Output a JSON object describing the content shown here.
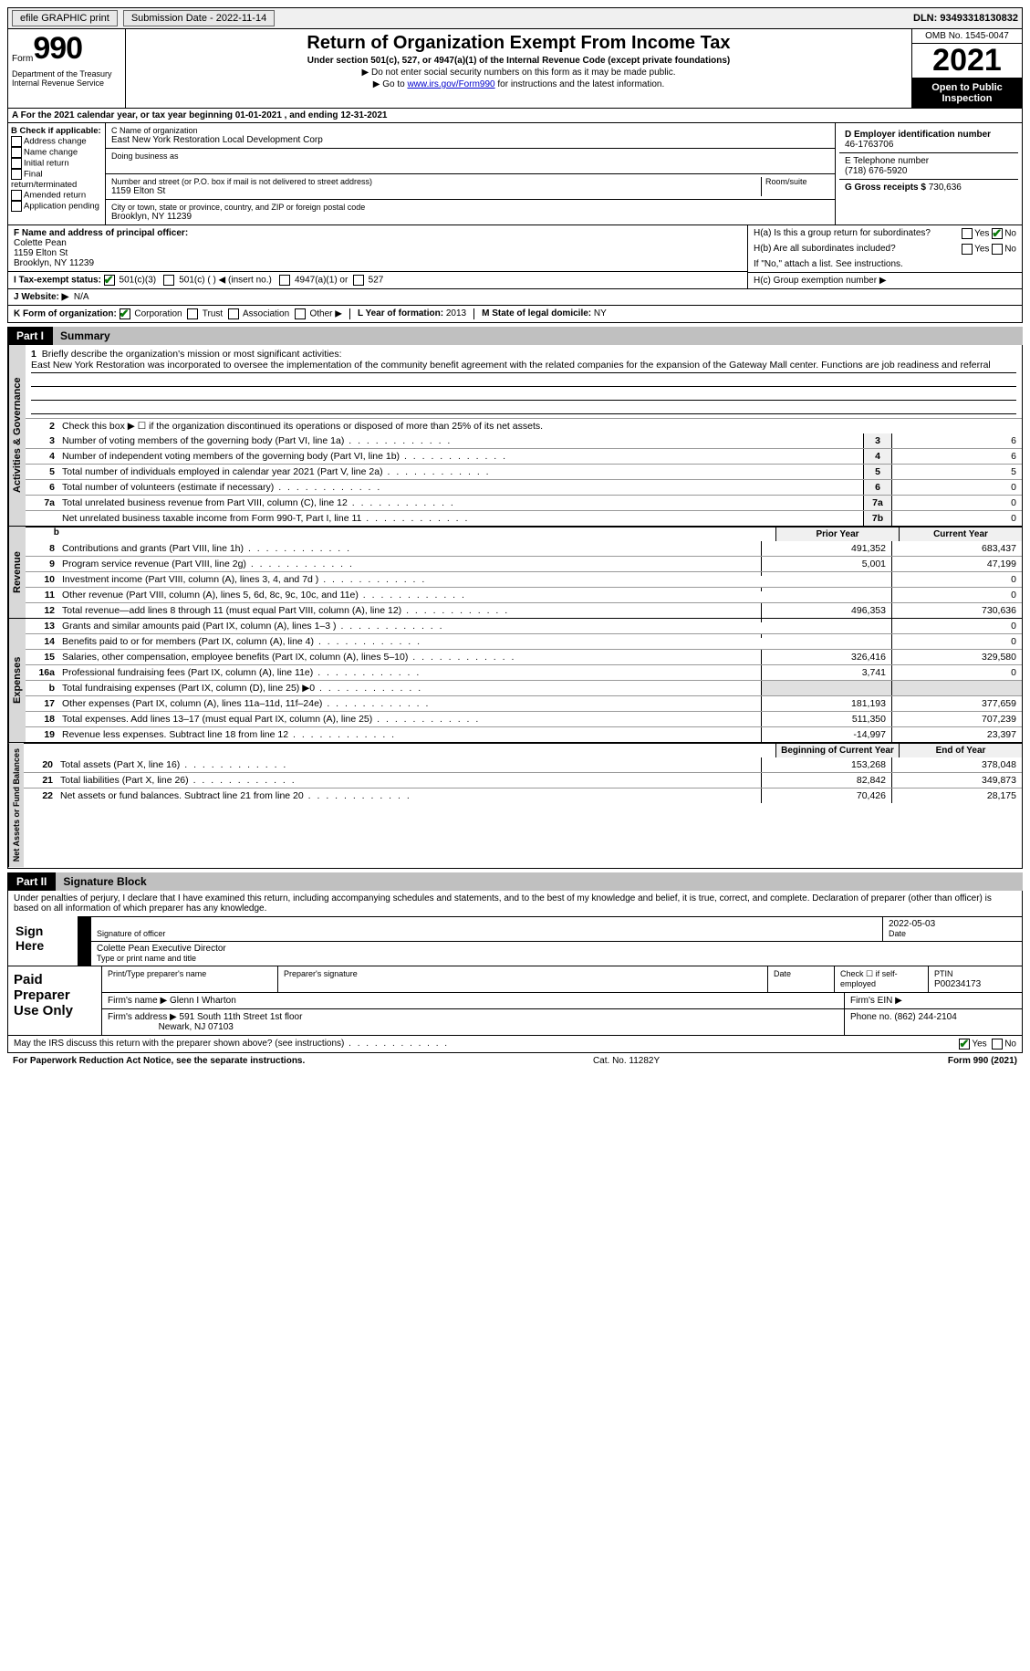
{
  "topbar": {
    "efile": "efile GRAPHIC print",
    "submission": "Submission Date - 2022-11-14",
    "dln": "DLN: 93493318130832"
  },
  "header": {
    "form_word": "Form",
    "form_num": "990",
    "dept": "Department of the Treasury\nInternal Revenue Service",
    "title": "Return of Organization Exempt From Income Tax",
    "sub": "Under section 501(c), 527, or 4947(a)(1) of the Internal Revenue Code (except private foundations)",
    "line1": "▶ Do not enter social security numbers on this form as it may be made public.",
    "line2_pre": "▶ Go to ",
    "line2_link": "www.irs.gov/Form990",
    "line2_post": " for instructions and the latest information.",
    "omb": "OMB No. 1545-0047",
    "year": "2021",
    "open_pub": "Open to Public Inspection"
  },
  "A": "A For the 2021 calendar year, or tax year beginning 01-01-2021   , and ending 12-31-2021",
  "B": {
    "title": "B Check if applicable:",
    "items": [
      "Address change",
      "Name change",
      "Initial return",
      "Final return/terminated",
      "Amended return",
      "Application pending"
    ]
  },
  "C": {
    "name_lbl": "C Name of organization",
    "name": "East New York Restoration Local Development Corp",
    "dba_lbl": "Doing business as",
    "addr_lbl": "Number and street (or P.O. box if mail is not delivered to street address)",
    "room_lbl": "Room/suite",
    "addr": "1159 Elton St",
    "city_lbl": "City or town, state or province, country, and ZIP or foreign postal code",
    "city": "Brooklyn, NY  11239"
  },
  "D": {
    "lbl": "D Employer identification number",
    "val": "46-1763706"
  },
  "E": {
    "lbl": "E Telephone number",
    "val": "(718) 676-5920"
  },
  "G": {
    "lbl": "G Gross receipts $",
    "val": "730,636"
  },
  "F": {
    "lbl": "F  Name and address of principal officer:",
    "name": "Colette Pean",
    "addr1": "1159 Elton St",
    "addr2": "Brooklyn, NY  11239"
  },
  "H": {
    "a": "H(a)  Is this a group return for subordinates?",
    "b": "H(b)  Are all subordinates included?",
    "b_note": "If \"No,\" attach a list. See instructions.",
    "c": "H(c)  Group exemption number ▶",
    "yes": "Yes",
    "no": "No"
  },
  "I": {
    "lbl": "I   Tax-exempt status:",
    "o1": "501(c)(3)",
    "o2": "501(c) (  ) ◀ (insert no.)",
    "o3": "4947(a)(1) or",
    "o4": "527"
  },
  "J": {
    "lbl": "J   Website: ▶",
    "val": "N/A"
  },
  "K": {
    "lbl": "K Form of organization:",
    "o1": "Corporation",
    "o2": "Trust",
    "o3": "Association",
    "o4": "Other ▶"
  },
  "L": {
    "lbl": "L Year of formation:",
    "val": "2013"
  },
  "M": {
    "lbl": "M State of legal domicile:",
    "val": "NY"
  },
  "part1": {
    "lbl": "Part I",
    "title": "Summary"
  },
  "mission": {
    "q": "Briefly describe the organization's mission or most significant activities:",
    "text": "East New York Restoration was incorporated to oversee the implementation of the community benefit agreement with the related companies for the expansion of the Gateway Mall center. Functions are job readiness and referral"
  },
  "summary": {
    "l2": "Check this box ▶ ☐  if the organization discontinued its operations or disposed of more than 25% of its net assets.",
    "rows_gov": [
      {
        "n": "3",
        "d": "Number of voting members of the governing body (Part VI, line 1a)",
        "b": "3",
        "v": "6"
      },
      {
        "n": "4",
        "d": "Number of independent voting members of the governing body (Part VI, line 1b)",
        "b": "4",
        "v": "6"
      },
      {
        "n": "5",
        "d": "Total number of individuals employed in calendar year 2021 (Part V, line 2a)",
        "b": "5",
        "v": "5"
      },
      {
        "n": "6",
        "d": "Total number of volunteers (estimate if necessary)",
        "b": "6",
        "v": "0"
      },
      {
        "n": "7a",
        "d": "Total unrelated business revenue from Part VIII, column (C), line 12",
        "b": "7a",
        "v": "0"
      },
      {
        "n": "",
        "d": "Net unrelated business taxable income from Form 990-T, Part I, line 11",
        "b": "7b",
        "v": "0"
      }
    ],
    "col_prior": "Prior Year",
    "col_curr": "Current Year",
    "rows_rev": [
      {
        "n": "8",
        "d": "Contributions and grants (Part VIII, line 1h)",
        "p": "491,352",
        "c": "683,437"
      },
      {
        "n": "9",
        "d": "Program service revenue (Part VIII, line 2g)",
        "p": "5,001",
        "c": "47,199"
      },
      {
        "n": "10",
        "d": "Investment income (Part VIII, column (A), lines 3, 4, and 7d )",
        "p": "",
        "c": "0"
      },
      {
        "n": "11",
        "d": "Other revenue (Part VIII, column (A), lines 5, 6d, 8c, 9c, 10c, and 11e)",
        "p": "",
        "c": "0"
      },
      {
        "n": "12",
        "d": "Total revenue—add lines 8 through 11 (must equal Part VIII, column (A), line 12)",
        "p": "496,353",
        "c": "730,636"
      }
    ],
    "rows_exp": [
      {
        "n": "13",
        "d": "Grants and similar amounts paid (Part IX, column (A), lines 1–3 )",
        "p": "",
        "c": "0"
      },
      {
        "n": "14",
        "d": "Benefits paid to or for members (Part IX, column (A), line 4)",
        "p": "",
        "c": "0"
      },
      {
        "n": "15",
        "d": "Salaries, other compensation, employee benefits (Part IX, column (A), lines 5–10)",
        "p": "326,416",
        "c": "329,580"
      },
      {
        "n": "16a",
        "d": "Professional fundraising fees (Part IX, column (A), line 11e)",
        "p": "3,741",
        "c": "0"
      },
      {
        "n": "b",
        "d": "Total fundraising expenses (Part IX, column (D), line 25) ▶0",
        "p": "SHADE",
        "c": "SHADE"
      },
      {
        "n": "17",
        "d": "Other expenses (Part IX, column (A), lines 11a–11d, 11f–24e)",
        "p": "181,193",
        "c": "377,659"
      },
      {
        "n": "18",
        "d": "Total expenses. Add lines 13–17 (must equal Part IX, column (A), line 25)",
        "p": "511,350",
        "c": "707,239"
      },
      {
        "n": "19",
        "d": "Revenue less expenses. Subtract line 18 from line 12",
        "p": "-14,997",
        "c": "23,397"
      }
    ],
    "col_beg": "Beginning of Current Year",
    "col_end": "End of Year",
    "rows_net": [
      {
        "n": "20",
        "d": "Total assets (Part X, line 16)",
        "p": "153,268",
        "c": "378,048"
      },
      {
        "n": "21",
        "d": "Total liabilities (Part X, line 26)",
        "p": "82,842",
        "c": "349,873"
      },
      {
        "n": "22",
        "d": "Net assets or fund balances. Subtract line 21 from line 20",
        "p": "70,426",
        "c": "28,175"
      }
    ],
    "vtabs": {
      "gov": "Activities & Governance",
      "rev": "Revenue",
      "exp": "Expenses",
      "net": "Net Assets or Fund Balances"
    }
  },
  "part2": {
    "lbl": "Part II",
    "title": "Signature Block"
  },
  "sig": {
    "intro": "Under penalties of perjury, I declare that I have examined this return, including accompanying schedules and statements, and to the best of my knowledge and belief, it is true, correct, and complete. Declaration of preparer (other than officer) is based on all information of which preparer has any knowledge.",
    "sign_here": "Sign Here",
    "sig_officer": "Signature of officer",
    "date": "Date",
    "date_val": "2022-05-03",
    "name_title": "Colette Pean  Executive Director",
    "name_title_lbl": "Type or print name and title"
  },
  "prep": {
    "lbl": "Paid Preparer Use Only",
    "h1": "Print/Type preparer's name",
    "h2": "Preparer's signature",
    "h3": "Date",
    "h4": "Check ☐ if self-employed",
    "h5_lbl": "PTIN",
    "h5": "P00234173",
    "firm_name_lbl": "Firm's name   ▶",
    "firm_name": "Glenn I Wharton",
    "firm_ein_lbl": "Firm's EIN ▶",
    "firm_addr_lbl": "Firm's address ▶",
    "firm_addr1": "591 South 11th Street 1st floor",
    "firm_addr2": "Newark, NJ  07103",
    "phone_lbl": "Phone no.",
    "phone": "(862) 244-2104"
  },
  "footer": {
    "discuss": "May the IRS discuss this return with the preparer shown above? (see instructions)",
    "yes": "Yes",
    "no": "No",
    "pra": "For Paperwork Reduction Act Notice, see the separate instructions.",
    "cat": "Cat. No. 11282Y",
    "form": "Form 990 (2021)"
  }
}
